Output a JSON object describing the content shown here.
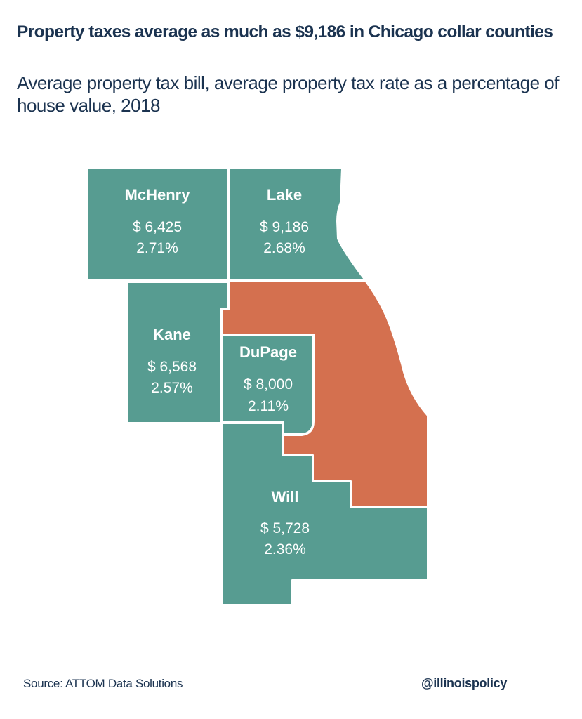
{
  "header": {
    "title": "Property taxes average as much as $9,186 in Chicago collar counties",
    "subtitle": "Average property tax bill, average property tax rate as a percentage of house value, 2018"
  },
  "colors": {
    "collar_county": "#579C91",
    "cook_county": "#D4704F",
    "text": "#1B3350"
  },
  "counties": {
    "mchenry": {
      "name": "McHenry",
      "bill": "$ 6,425",
      "rate": "2.71%"
    },
    "lake": {
      "name": "Lake",
      "bill": "$ 9,186",
      "rate": "2.68%"
    },
    "kane": {
      "name": "Kane",
      "bill": "$ 6,568",
      "rate": "2.57%"
    },
    "dupage": {
      "name": "DuPage",
      "bill": "$ 8,000",
      "rate": "2.11%"
    },
    "will": {
      "name": "Will",
      "bill": "$ 5,728",
      "rate": "2.36%"
    }
  },
  "footer": {
    "source": "Source: ATTOM Data Solutions",
    "handle": "@illinoispolicy"
  }
}
